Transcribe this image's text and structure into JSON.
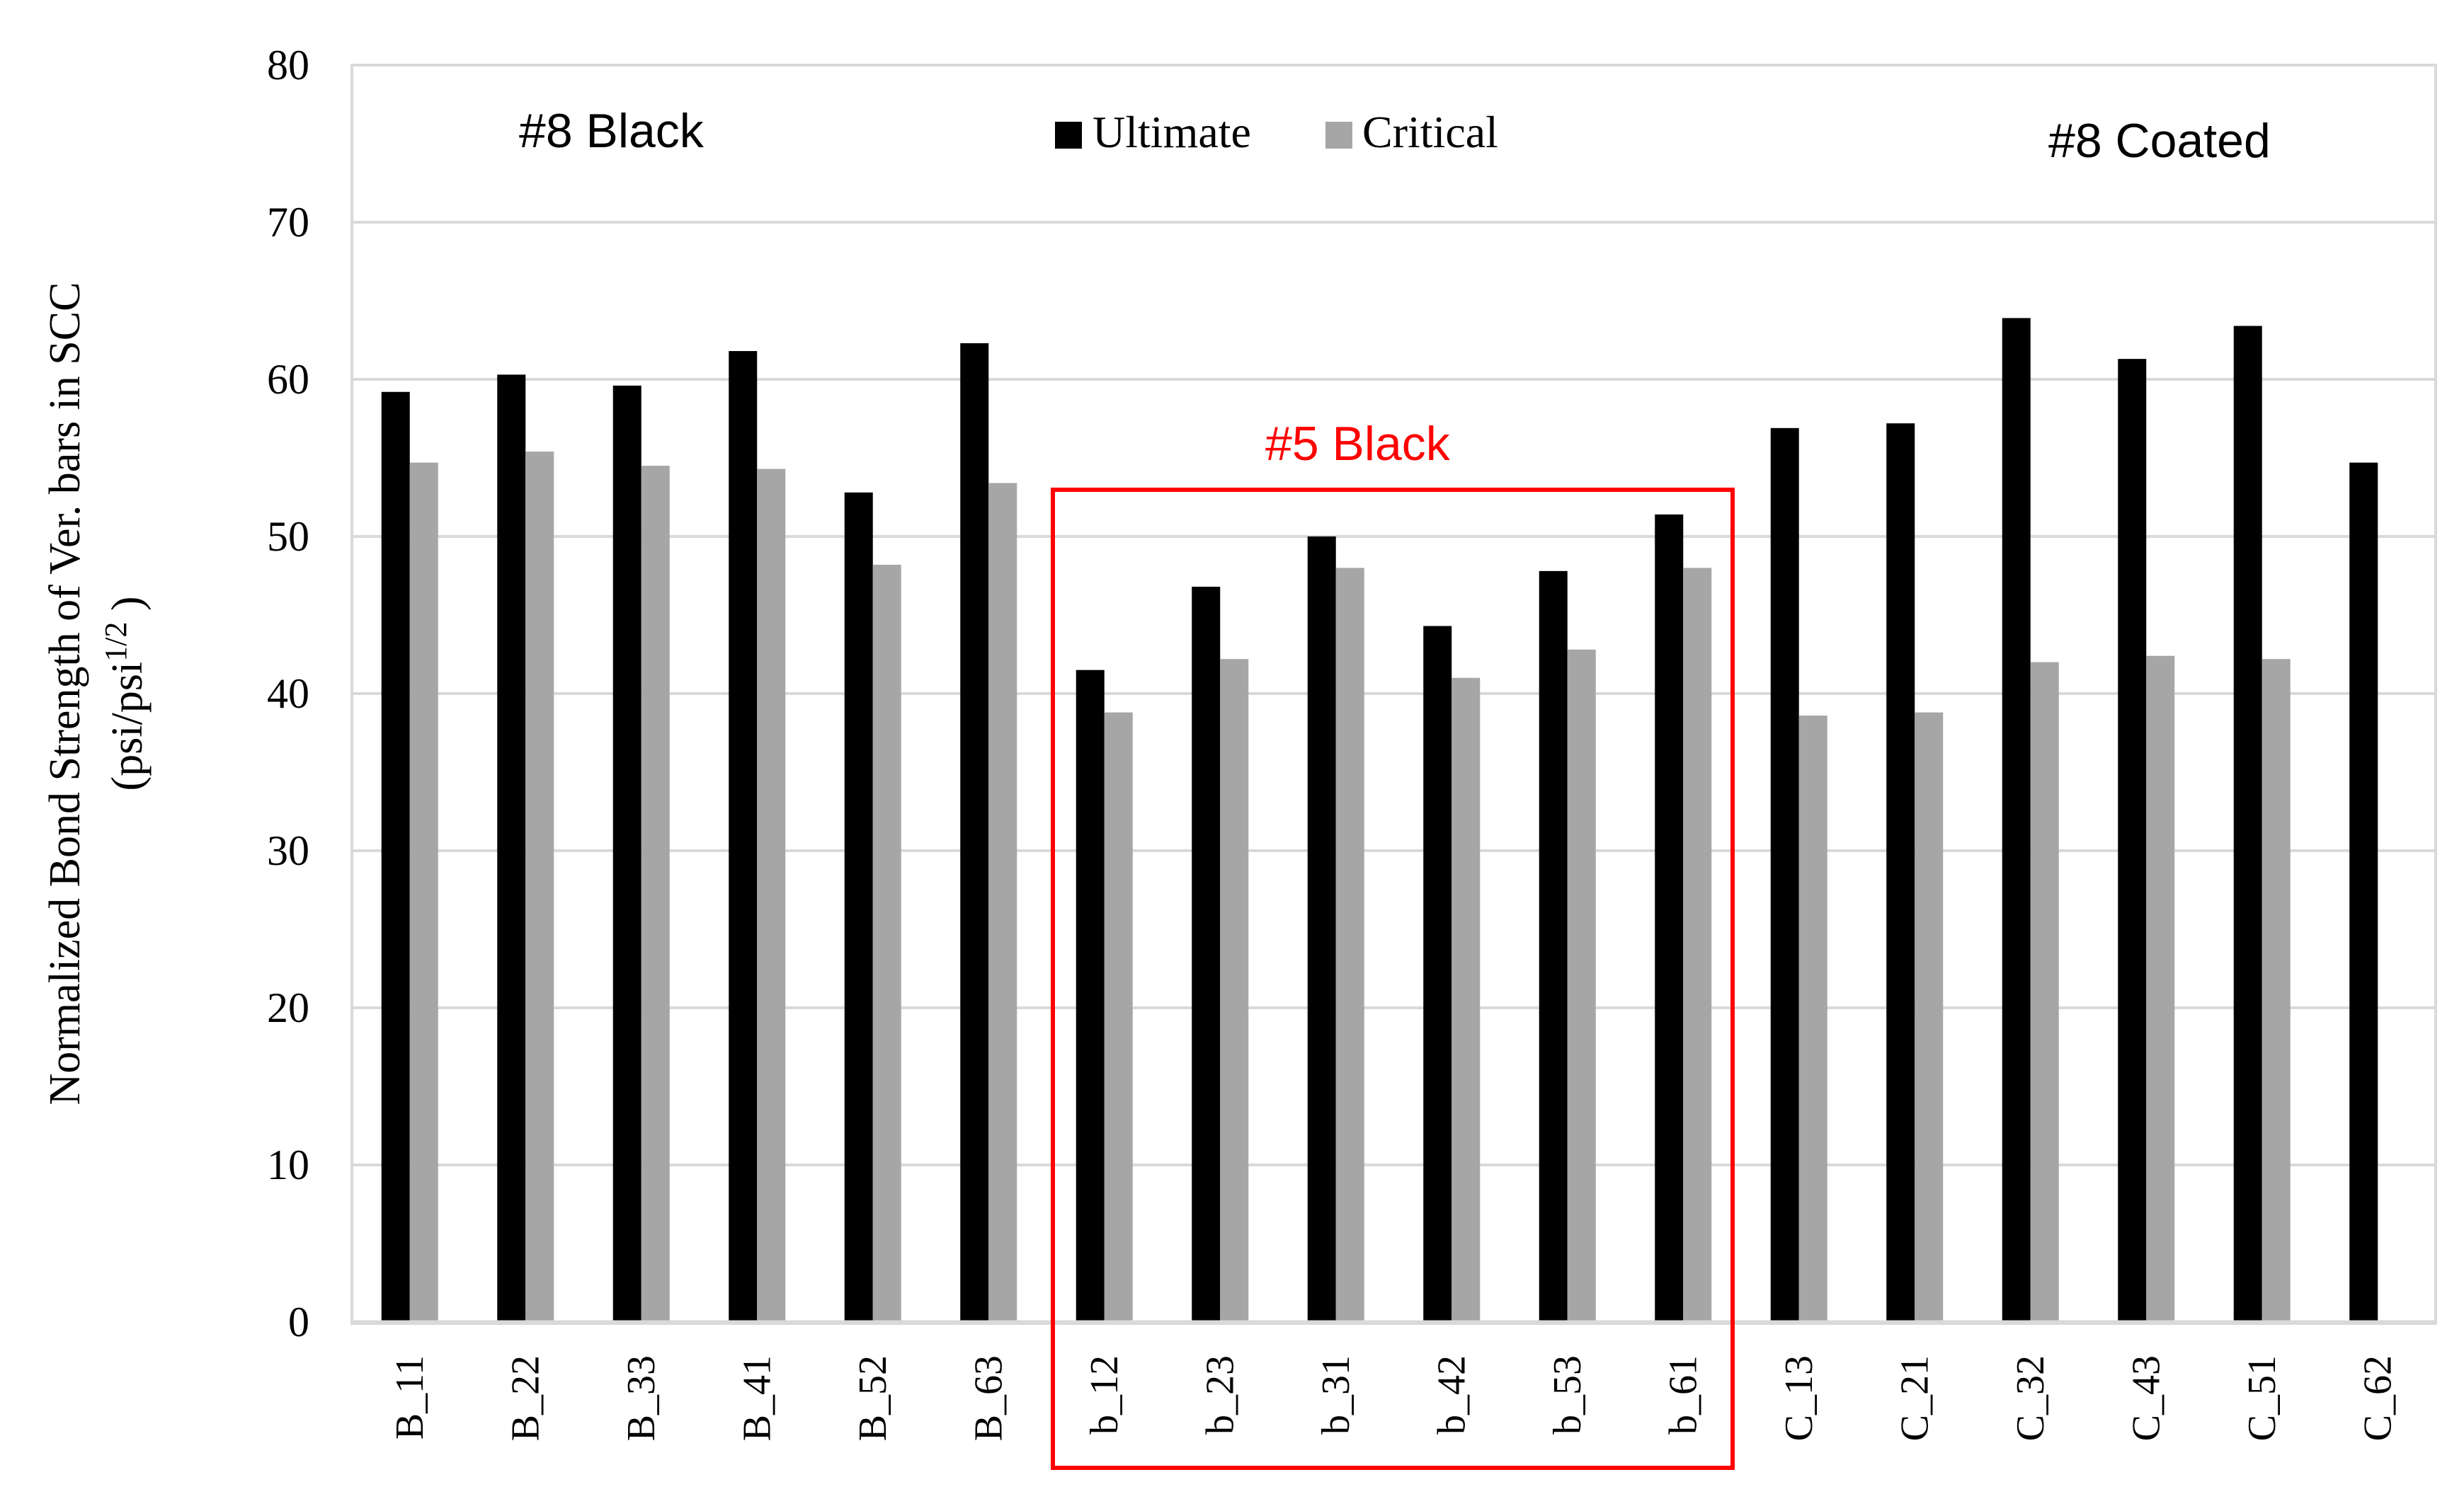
{
  "chart_data": {
    "type": "bar",
    "ylabel_line1": "Normalized Bond Strength of Ver. bars in SCC",
    "ylabel_line2_prefix": "(psi/psi",
    "ylabel_line2_sup": "1/2",
    "ylabel_line2_suffix": " )",
    "ylim": [
      0,
      80
    ],
    "yticks": [
      0,
      10,
      20,
      30,
      40,
      50,
      60,
      70,
      80
    ],
    "grid": true,
    "legend_position": "top-center",
    "categories": [
      "B_11",
      "B_22",
      "B_33",
      "B_41",
      "B_52",
      "B_63",
      "b_12",
      "b_23",
      "b_31",
      "b_42",
      "b_53",
      "b_61",
      "C_13",
      "C_21",
      "C_32",
      "C_43",
      "C_51",
      "C_62"
    ],
    "series": [
      {
        "name": "Ultimate",
        "color": "#000000",
        "values": [
          59.2,
          60.3,
          59.6,
          61.8,
          52.8,
          62.3,
          41.5,
          46.8,
          50.0,
          44.3,
          47.8,
          51.4,
          56.9,
          57.2,
          63.9,
          61.3,
          63.4,
          54.7
        ]
      },
      {
        "name": "Critical",
        "color": "#a6a6a6",
        "values": [
          54.7,
          55.4,
          54.5,
          54.3,
          48.2,
          53.4,
          38.8,
          42.2,
          48.0,
          41.0,
          42.8,
          48.0,
          38.6,
          38.8,
          42.0,
          42.4,
          42.2,
          null
        ]
      }
    ],
    "annotations": [
      {
        "text": "#8 Black",
        "color": "#000000"
      },
      {
        "text": "#5 Black",
        "color": "#ff0000"
      },
      {
        "text": "#8 Coated",
        "color": "#000000"
      }
    ],
    "highlight_box_color": "#ff0000"
  }
}
